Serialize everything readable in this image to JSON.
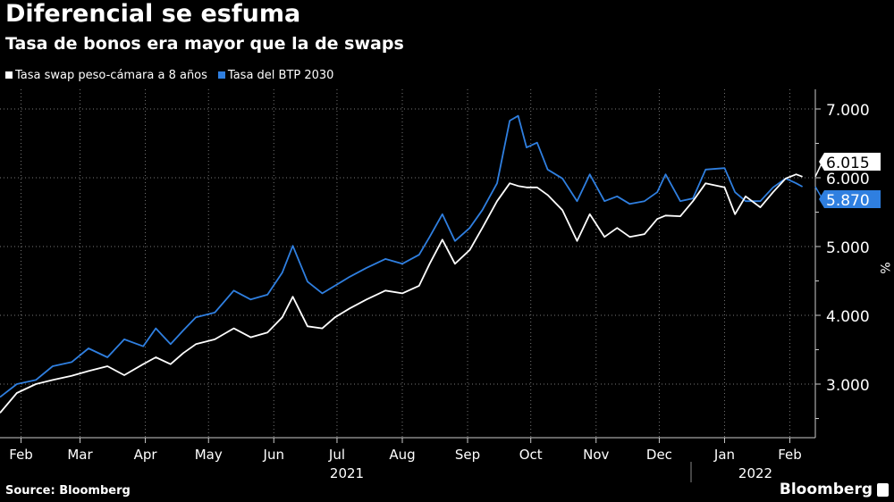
{
  "header": {
    "title": "Diferencial se esfuma",
    "subtitle": "Tasa de bonos era mayor que la de swaps"
  },
  "footer": {
    "source": "Source: Bloomberg",
    "brand": "Bloomberg"
  },
  "chart_data": {
    "type": "line",
    "title": "Diferencial se esfuma",
    "subtitle": "Tasa de bonos era mayor que la de swaps",
    "ylabel": "%",
    "ylim": [
      2.3,
      7.3
    ],
    "yticks": [
      "3.000",
      "4.000",
      "5.000",
      "6.000",
      "7.000"
    ],
    "ytick_values": [
      3,
      4,
      5,
      6,
      7
    ],
    "y_axis_side": "right",
    "grid": true,
    "legend": "top-left",
    "xticks": [
      {
        "label": "Feb",
        "date": "2021-02-01"
      },
      {
        "label": "Mar",
        "date": "2021-03-01"
      },
      {
        "label": "Apr",
        "date": "2021-04-01"
      },
      {
        "label": "May",
        "date": "2021-05-01"
      },
      {
        "label": "Jun",
        "date": "2021-06-01"
      },
      {
        "label": "Jul",
        "date": "2021-07-01"
      },
      {
        "label": "Aug",
        "date": "2021-08-01"
      },
      {
        "label": "Sep",
        "date": "2021-09-01"
      },
      {
        "label": "Oct",
        "date": "2021-10-01"
      },
      {
        "label": "Nov",
        "date": "2021-11-01"
      },
      {
        "label": "Dec",
        "date": "2021-12-01"
      },
      {
        "label": "Jan",
        "date": "2022-01-01"
      },
      {
        "label": "Feb",
        "date": "2022-02-01"
      }
    ],
    "years": [
      "2021",
      "2022"
    ],
    "x": [
      "2021-01-22",
      "2021-01-30",
      "2021-02-08",
      "2021-02-16",
      "2021-02-25",
      "2021-03-05",
      "2021-03-14",
      "2021-03-22",
      "2021-03-31",
      "2021-04-06",
      "2021-04-13",
      "2021-04-19",
      "2021-04-25",
      "2021-05-04",
      "2021-05-13",
      "2021-05-21",
      "2021-05-29",
      "2021-06-05",
      "2021-06-10",
      "2021-06-17",
      "2021-06-24",
      "2021-06-30",
      "2021-07-07",
      "2021-07-15",
      "2021-07-24",
      "2021-08-01",
      "2021-08-09",
      "2021-08-14",
      "2021-08-20",
      "2021-08-26",
      "2021-09-02",
      "2021-09-08",
      "2021-09-15",
      "2021-09-21",
      "2021-09-25",
      "2021-09-29",
      "2021-10-04",
      "2021-10-09",
      "2021-10-16",
      "2021-10-23",
      "2021-10-29",
      "2021-11-05",
      "2021-11-11",
      "2021-11-17",
      "2021-11-24",
      "2021-11-30",
      "2021-12-04",
      "2021-12-11",
      "2021-12-17",
      "2021-12-23",
      "2022-01-01",
      "2022-01-06",
      "2022-01-11",
      "2022-01-18",
      "2022-01-24",
      "2022-01-30",
      "2022-02-04",
      "2022-02-07"
    ],
    "series": [
      {
        "name": "Tasa swap peso-cámara a 8 años",
        "color": "#ffffff",
        "last_label": "6.015",
        "values": [
          2.58,
          2.87,
          3.0,
          3.06,
          3.12,
          3.19,
          3.26,
          3.13,
          3.29,
          3.39,
          3.29,
          3.45,
          3.58,
          3.65,
          3.81,
          3.68,
          3.75,
          3.97,
          4.27,
          3.84,
          3.81,
          3.97,
          4.1,
          4.23,
          4.36,
          4.32,
          4.43,
          4.75,
          5.1,
          4.75,
          4.95,
          5.27,
          5.66,
          5.92,
          5.88,
          5.86,
          5.86,
          5.75,
          5.53,
          5.08,
          5.47,
          5.14,
          5.27,
          5.14,
          5.18,
          5.4,
          5.45,
          5.44,
          5.66,
          5.92,
          5.86,
          5.47,
          5.73,
          5.57,
          5.79,
          5.99,
          6.05,
          6.015
        ]
      },
      {
        "name": "Tasa del BTP 2030",
        "color": "#2f7fe0",
        "last_label": "5.870",
        "values": [
          2.81,
          3.0,
          3.06,
          3.26,
          3.32,
          3.52,
          3.39,
          3.65,
          3.55,
          3.81,
          3.58,
          3.78,
          3.97,
          4.04,
          4.36,
          4.23,
          4.3,
          4.62,
          5.01,
          4.49,
          4.32,
          4.43,
          4.56,
          4.69,
          4.82,
          4.75,
          4.88,
          5.14,
          5.47,
          5.08,
          5.27,
          5.53,
          5.92,
          6.83,
          6.9,
          6.44,
          6.51,
          6.12,
          5.99,
          5.66,
          6.05,
          5.66,
          5.73,
          5.62,
          5.66,
          5.79,
          6.05,
          5.66,
          5.7,
          6.12,
          6.14,
          5.79,
          5.66,
          5.66,
          5.86,
          5.99,
          5.92,
          5.87
        ]
      }
    ]
  }
}
